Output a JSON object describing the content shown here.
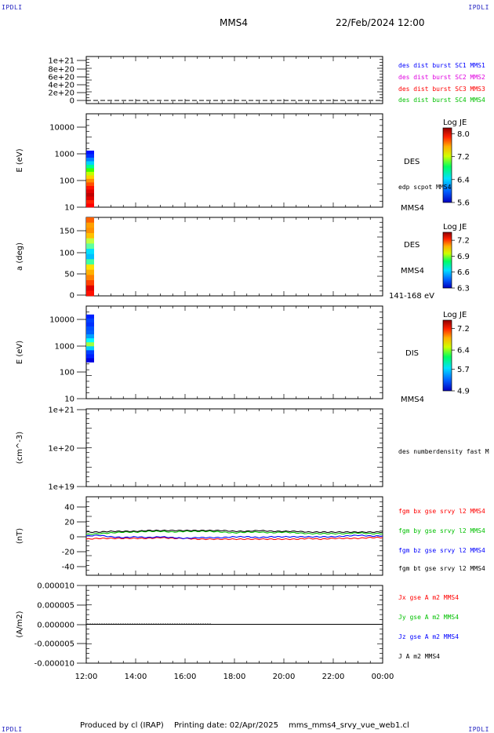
{
  "header": {
    "corner_tl": "IPDLI",
    "corner_tr": "IPDLI",
    "corner_bl": "IPDLI",
    "corner_br": "IPDLI",
    "spacecraft": "MMS4",
    "datetime": "22/Feb/2024 12:00"
  },
  "footer": {
    "producer": "Produced by cl (IRAP)",
    "print_date": "Printing date: 02/Apr/2025",
    "filename": "mms_mms4_srvy_vue_web1.cl"
  },
  "colors": {
    "blue": "#0000ff",
    "magenta": "#e000e0",
    "red": "#ff0000",
    "green": "#00c000",
    "black": "#000000"
  },
  "chart_data": [
    {
      "type": "line",
      "panel": "distribution-counts",
      "ylabel": "",
      "ylim": [
        0,
        1.1e+21
      ],
      "yticks": [
        "1e+21",
        "8e+20",
        "6e+20",
        "4e+20",
        "2e+20",
        "0"
      ],
      "series": [
        {
          "name": "des dist burst SC1 MMS1",
          "color": "#0000ff"
        },
        {
          "name": "des dist burst SC2 MMS2",
          "color": "#e000e0"
        },
        {
          "name": "des dist burst SC3 MMS3",
          "color": "#ff0000"
        },
        {
          "name": "des dist burst SC4 MMS4",
          "color": "#00c000"
        }
      ],
      "baseline": 0
    },
    {
      "type": "heatmap",
      "panel": "des-energy-spectrogram",
      "ylabel": "E (eV)",
      "yscale": "log",
      "ylim": [
        10,
        20000
      ],
      "yticks": [
        "10000",
        "1000",
        "100",
        "10"
      ],
      "side_labels": [
        "DES",
        "edp scpot MMS4",
        "MMS4"
      ],
      "colorbar": {
        "title": "Log JE",
        "ticks": [
          "8.0",
          "7.2",
          "6.4",
          "5.6"
        ],
        "range": [
          5.6,
          8.2
        ]
      },
      "data_x_range": [
        "12:00",
        "12:20"
      ],
      "data_y_range": [
        10,
        1000
      ]
    },
    {
      "type": "heatmap",
      "panel": "des-pitch-angle",
      "ylabel": "a (deg)",
      "ylim": [
        0,
        180
      ],
      "yticks": [
        "150",
        "100",
        "50",
        "0"
      ],
      "side_labels": [
        "DES",
        "MMS4",
        "141-168 eV"
      ],
      "colorbar": {
        "title": "Log JE",
        "ticks": [
          "7.2",
          "6.9",
          "6.6",
          "6.3"
        ],
        "range": [
          6.3,
          7.35
        ]
      },
      "data_x_range": [
        "12:00",
        "12:20"
      ]
    },
    {
      "type": "heatmap",
      "panel": "dis-energy-spectrogram",
      "ylabel": "E (eV)",
      "yscale": "log",
      "ylim": [
        10,
        20000
      ],
      "yticks": [
        "10000",
        "1000",
        "100",
        "10"
      ],
      "side_labels": [
        "DIS",
        "MMS4"
      ],
      "colorbar": {
        "title": "Log JE",
        "ticks": [
          "7.2",
          "6.4",
          "5.7",
          "4.9"
        ],
        "range": [
          4.9,
          7.5
        ]
      },
      "data_x_range": [
        "12:00",
        "12:20"
      ],
      "data_y_range": [
        200,
        10000
      ]
    },
    {
      "type": "line",
      "panel": "number-density",
      "ylabel": "(cm^-3)",
      "yscale": "log",
      "ylim": [
        1e+19,
        1e+21
      ],
      "yticks": [
        "1e+21",
        "1e+20",
        "1e+19"
      ],
      "series": [
        {
          "name": "des numberdensity fast M",
          "color": "#000000"
        }
      ]
    },
    {
      "type": "line",
      "panel": "magnetic-field",
      "ylabel": "(nT)",
      "ylim": [
        -50,
        50
      ],
      "yticks": [
        "40",
        "20",
        "0",
        "-20",
        "-40"
      ],
      "x": [
        "12:00",
        "12:30",
        "13:00",
        "13:30",
        "14:00",
        "14:30",
        "15:00",
        "15:30",
        "16:00",
        "16:30",
        "17:00",
        "17:30",
        "18:00",
        "18:30",
        "19:00",
        "19:30",
        "20:00",
        "20:30",
        "21:00",
        "21:30",
        "22:00",
        "22:30",
        "23:00",
        "23:30",
        "00:00"
      ],
      "series": [
        {
          "name": "fgm bx gse srvy l2 MMS4",
          "color": "#ff0000",
          "values": [
            -4,
            -3,
            -3,
            -3,
            -3,
            -3,
            -2,
            -3,
            -3,
            -4,
            -4,
            -4,
            -4,
            -4,
            -4,
            -4,
            -4,
            -4,
            -3,
            -4,
            -3,
            -3,
            -3,
            -2,
            -2
          ]
        },
        {
          "name": "fgm by gse srvy l2 MMS4",
          "color": "#00c000",
          "values": [
            2,
            3,
            4,
            5,
            5,
            6,
            6,
            5,
            6,
            6,
            6,
            5,
            4,
            5,
            5,
            4,
            5,
            4,
            3,
            3,
            3,
            3,
            4,
            3,
            3
          ]
        },
        {
          "name": "fgm bz gse srvy l2 MMS4",
          "color": "#0000ff",
          "values": [
            0,
            1,
            -1,
            -2,
            -1,
            -2,
            -1,
            -2,
            -3,
            -2,
            -2,
            -2,
            -1,
            -1,
            -2,
            -1,
            -1,
            -1,
            -1,
            -1,
            -1,
            0,
            1,
            0,
            0
          ]
        },
        {
          "name": "fgm bt gse srvy l2 MMS4",
          "color": "#000000",
          "values": [
            5,
            5,
            6,
            6,
            6,
            7,
            7,
            7,
            7,
            7,
            7,
            7,
            6,
            6,
            7,
            6,
            6,
            6,
            5,
            5,
            5,
            5,
            5,
            5,
            5
          ]
        }
      ]
    },
    {
      "type": "line",
      "panel": "current-density",
      "ylabel": "(A/m2)",
      "ylim": [
        -1e-05,
        1e-05
      ],
      "yticks": [
        "0.000010",
        "0.000005",
        "0.000000",
        "-0.000005",
        "-0.000010"
      ],
      "series": [
        {
          "name": "Jx gse A m2 MMS4",
          "color": "#ff0000"
        },
        {
          "name": "Jy gse A m2 MMS4",
          "color": "#00c000"
        },
        {
          "name": "Jz gse A m2 MMS4",
          "color": "#0000ff"
        },
        {
          "name": "J A m2 MMS4",
          "color": "#000000"
        }
      ],
      "baseline": 0
    }
  ],
  "x_axis": {
    "ticks": [
      "12:00",
      "14:00",
      "16:00",
      "18:00",
      "20:00",
      "22:00",
      "00:00"
    ]
  }
}
